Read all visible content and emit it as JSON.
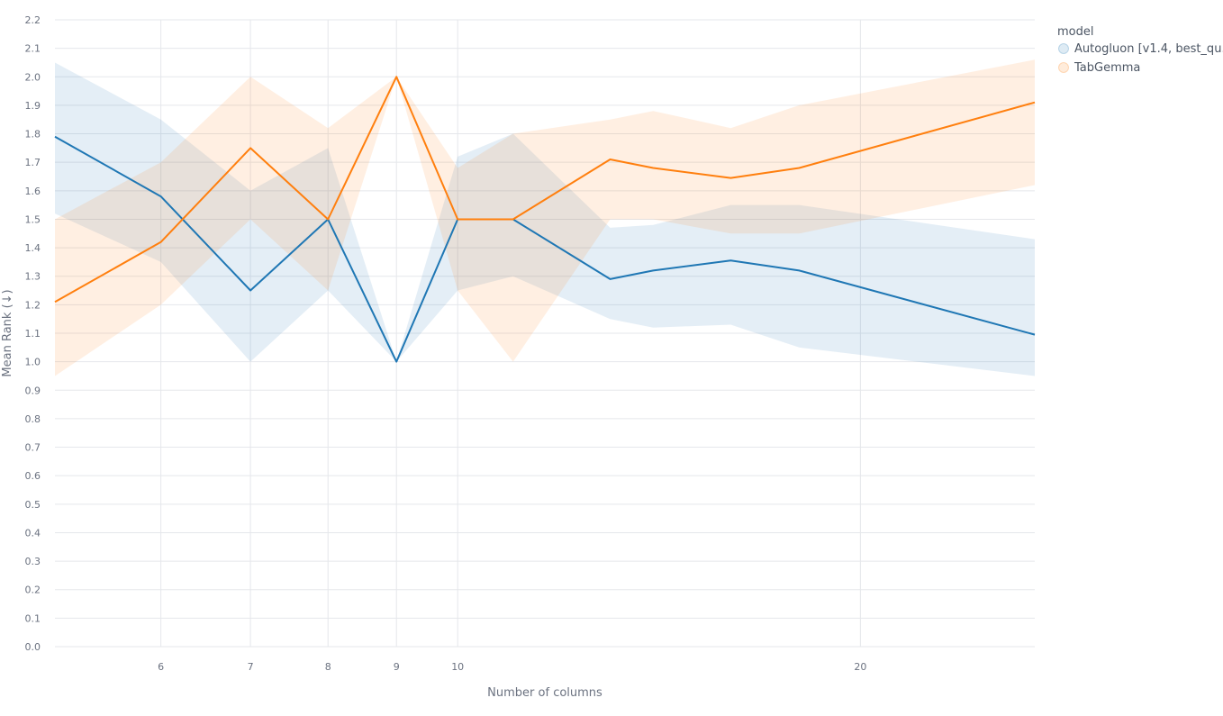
{
  "chart_data": {
    "type": "line",
    "xlabel": "Number of columns",
    "ylabel": "Mean Rank (↓)",
    "x_scale": "log",
    "xlim": [
      5,
      27
    ],
    "ylim": [
      0,
      2.2
    ],
    "x_ticks": [
      6,
      7,
      8,
      9,
      10,
      20
    ],
    "y_ticks": [
      "0.0",
      "0.1",
      "0.2",
      "0.3",
      "0.4",
      "0.5",
      "0.6",
      "0.7",
      "0.8",
      "0.9",
      "1.0",
      "1.1",
      "1.2",
      "1.3",
      "1.4",
      "1.5",
      "1.6",
      "1.7",
      "1.8",
      "1.9",
      "2.0",
      "2.1",
      "2.2"
    ],
    "grid": true,
    "legend": {
      "title": "model",
      "position": "top-right",
      "entries": [
        "Autogluon [v1.4, best_qu…",
        "TabGemma"
      ]
    },
    "series": [
      {
        "name": "Autogluon [v1.4, best_qu…",
        "color": "#1f77b4",
        "band_color": "#1f77b4",
        "x": [
          5,
          6,
          7,
          8,
          9,
          10,
          11,
          13,
          14,
          16,
          18,
          27
        ],
        "y": [
          1.79,
          1.58,
          1.25,
          1.5,
          1.0,
          1.5,
          1.5,
          1.29,
          1.32,
          1.355,
          1.32,
          1.095
        ],
        "lower": [
          1.52,
          1.35,
          1.0,
          1.25,
          1.0,
          1.25,
          1.3,
          1.15,
          1.12,
          1.13,
          1.05,
          0.95
        ],
        "upper": [
          2.05,
          1.85,
          1.6,
          1.75,
          1.0,
          1.72,
          1.8,
          1.47,
          1.48,
          1.55,
          1.55,
          1.43
        ]
      },
      {
        "name": "TabGemma",
        "color": "#ff7f0e",
        "band_color": "#ff7f0e",
        "x": [
          5,
          6,
          7,
          8,
          9,
          10,
          11,
          13,
          14,
          16,
          18,
          27
        ],
        "y": [
          1.21,
          1.42,
          1.75,
          1.5,
          2.0,
          1.5,
          1.5,
          1.71,
          1.68,
          1.645,
          1.68,
          1.91
        ],
        "lower": [
          0.95,
          1.2,
          1.5,
          1.25,
          2.0,
          1.25,
          1.0,
          1.5,
          1.5,
          1.45,
          1.45,
          1.62
        ],
        "upper": [
          1.5,
          1.7,
          2.0,
          1.82,
          2.0,
          1.68,
          1.8,
          1.85,
          1.88,
          1.82,
          1.9,
          2.06
        ]
      }
    ]
  }
}
